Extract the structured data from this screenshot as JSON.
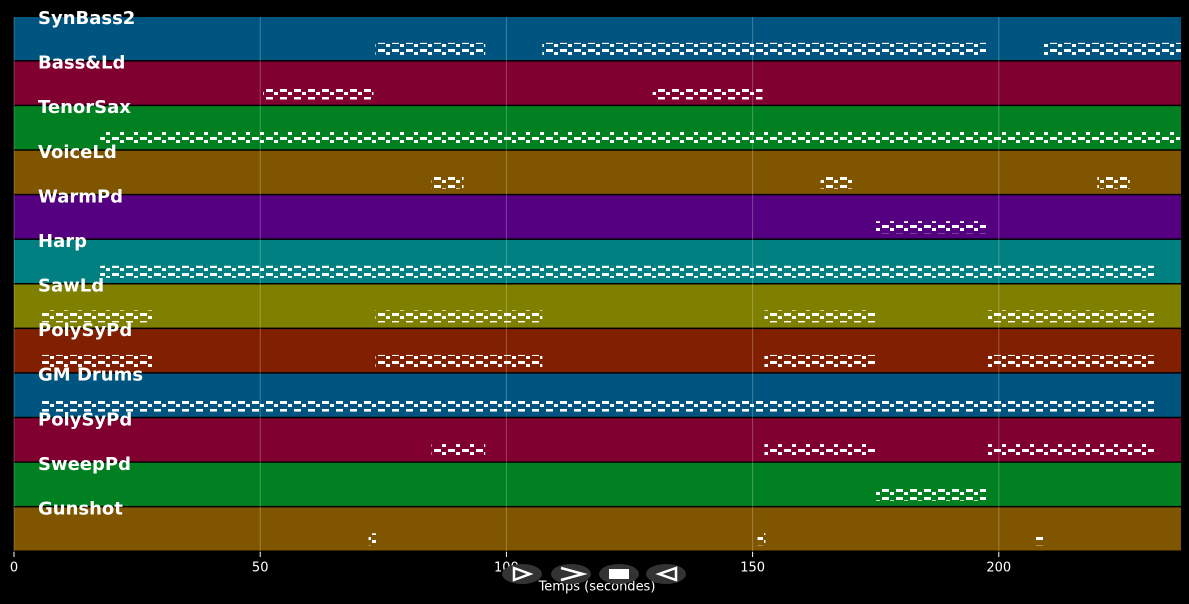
{
  "chart_data": {
    "type": "timeline",
    "x_label": "Temps (secondes)",
    "xlim": [
      0,
      237
    ],
    "xticks": [
      0,
      50,
      100,
      150,
      200
    ],
    "grid": true,
    "series": [
      {
        "name": "SynBass2",
        "color": "#005580",
        "spans": [
          [
            73.4,
            95.7
          ],
          [
            107.3,
            197.4
          ],
          [
            209.0,
            237.0
          ]
        ]
      },
      {
        "name": "Bass&Ld",
        "color": "#800030",
        "spans": [
          [
            50.6,
            73.0
          ],
          [
            129.7,
            152.0
          ]
        ]
      },
      {
        "name": "TenorSax",
        "color": "#008020",
        "spans": [
          [
            17.5,
            236.8
          ]
        ]
      },
      {
        "name": "VoiceLd",
        "color": "#805500",
        "spans": [
          [
            84.8,
            91.3
          ],
          [
            163.8,
            170.3
          ],
          [
            220.0,
            226.6
          ]
        ]
      },
      {
        "name": "WarmPd",
        "color": "#550080",
        "spans": [
          [
            175.0,
            197.4
          ]
        ]
      },
      {
        "name": "Harp",
        "color": "#008080",
        "spans": [
          [
            17.5,
            231.5
          ]
        ]
      },
      {
        "name": "SawLd",
        "color": "#808000",
        "spans": [
          [
            5.7,
            28.3
          ],
          [
            73.4,
            107.3
          ],
          [
            152.4,
            175.0
          ],
          [
            197.6,
            231.5
          ]
        ]
      },
      {
        "name": "PolySyPd",
        "color": "#802000",
        "spans": [
          [
            5.7,
            28.3
          ],
          [
            73.4,
            107.3
          ],
          [
            152.4,
            175.0
          ],
          [
            197.6,
            231.5
          ]
        ]
      },
      {
        "name": "GM Drums",
        "color": "#005580",
        "spans": [
          [
            5.7,
            231.5
          ]
        ]
      },
      {
        "name": "PolySyPd",
        "color": "#800030",
        "spans": [
          [
            84.8,
            95.7
          ],
          [
            152.4,
            175.0
          ],
          [
            197.6,
            231.5
          ]
        ]
      },
      {
        "name": "SweepPd",
        "color": "#008020",
        "spans": [
          [
            175.0,
            197.4
          ]
        ]
      },
      {
        "name": "Gunshot",
        "color": "#805500",
        "spans": [
          [
            72.0,
            73.6
          ],
          [
            151.0,
            152.6
          ],
          [
            207.3,
            209.0
          ]
        ]
      }
    ]
  }
}
